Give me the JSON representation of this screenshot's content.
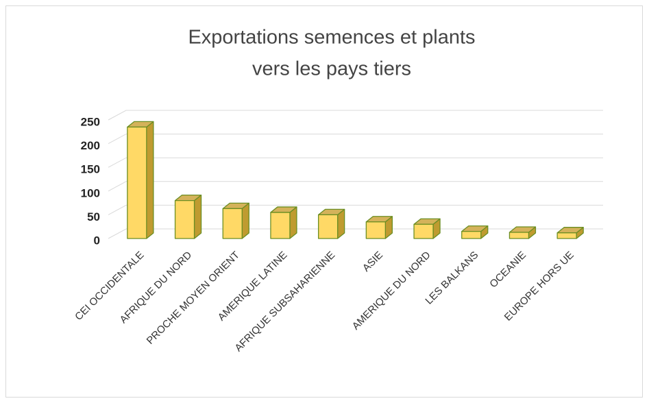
{
  "chart_data": {
    "type": "bar3d",
    "title": [
      "Exportations semences et plants",
      "vers les pays tiers"
    ],
    "categories": [
      "CEI OCCIDENTALE",
      "AFRIQUE DU NORD",
      "PROCHE MOYEN ORIENT",
      "AMERIQUE LATINE",
      "AFRIQUE SUBSAHARIENNE",
      "ASIE",
      "AMERIQUE DU NORD",
      "LES BALKANS",
      "OCEANIE",
      "EUROPE HORS UE"
    ],
    "values": [
      235,
      80,
      63,
      55,
      50,
      35,
      30,
      15,
      13,
      12
    ],
    "color": "#ffd966",
    "ylim": [
      0,
      250
    ],
    "yticks": [
      0,
      50,
      100,
      150,
      200,
      250
    ],
    "grid": true
  }
}
